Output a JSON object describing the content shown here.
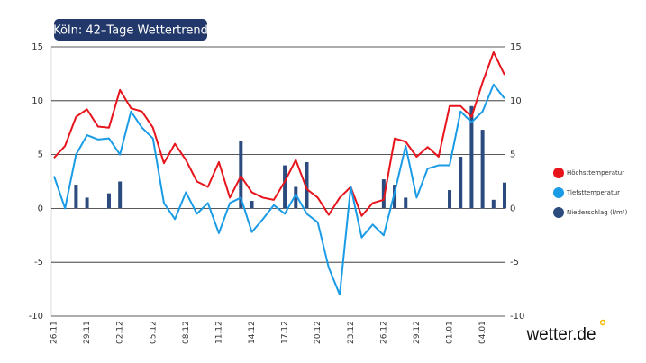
{
  "chart_data": {
    "type": "line",
    "title": "Köln: 42–Tage Wettertrend",
    "brand": "wetter.de",
    "categories": [
      "26.11",
      null,
      null,
      "29.11",
      null,
      null,
      "02.12",
      null,
      null,
      "05.12",
      null,
      null,
      "08.12",
      null,
      null,
      "11.12",
      null,
      null,
      "14.12",
      null,
      null,
      "17.12",
      null,
      null,
      "20.12",
      null,
      null,
      "23.12",
      null,
      null,
      "26.12",
      null,
      null,
      "29.12",
      null,
      null,
      "01.01",
      null,
      null,
      "04.01",
      null,
      null
    ],
    "series": [
      {
        "name": "Höchsttemperatur",
        "color": "#e8141c",
        "type": "line",
        "values": [
          4.7,
          5.8,
          8.5,
          9.2,
          7.6,
          7.5,
          11.0,
          9.3,
          9.0,
          7.5,
          4.2,
          6.0,
          4.5,
          2.5,
          2.0,
          4.3,
          1.0,
          3.0,
          1.5,
          1.0,
          0.8,
          2.5,
          4.5,
          1.8,
          1.0,
          -0.6,
          1.0,
          2.0,
          -0.7,
          0.5,
          0.8,
          6.5,
          6.2,
          4.8,
          5.7,
          4.8,
          9.5,
          9.5,
          8.5,
          11.7,
          14.5,
          12.4
        ]
      },
      {
        "name": "Tiefsttemperatur",
        "color": "#1a9be6",
        "type": "line",
        "values": [
          3.0,
          0.0,
          5.0,
          6.8,
          6.4,
          6.5,
          5.0,
          9.0,
          7.5,
          6.5,
          0.5,
          -1.0,
          1.5,
          -0.5,
          0.5,
          -2.3,
          0.5,
          1.0,
          -2.2,
          -1.0,
          0.3,
          -0.5,
          1.3,
          -0.5,
          -1.3,
          -5.5,
          -8.0,
          2.0,
          -2.7,
          -1.5,
          -2.5,
          1.5,
          5.8,
          1.0,
          3.7,
          4.0,
          4.0,
          9.0,
          8.0,
          9.0,
          11.5,
          10.2
        ]
      },
      {
        "name": "Niederschlag (l/m²)",
        "color": "#2b4a7e",
        "type": "bar",
        "axis": "y2",
        "values": [
          0,
          0,
          2.2,
          1.0,
          0,
          1.4,
          2.5,
          0,
          0,
          0,
          0,
          0,
          0,
          0,
          0,
          0,
          0,
          6.3,
          0.7,
          0,
          0,
          4.0,
          2.0,
          4.3,
          0,
          0,
          0,
          0,
          0,
          0,
          2.7,
          2.2,
          1.0,
          0,
          0,
          0,
          1.7,
          4.8,
          9.5,
          7.3,
          0.8,
          2.4
        ]
      }
    ],
    "ylim": [
      -10,
      15
    ],
    "yticks": [
      -10,
      -5,
      0,
      5,
      10,
      15
    ],
    "y2lim": [
      -10,
      15
    ],
    "y2ticks": [
      -10,
      -5,
      0,
      5,
      10,
      15
    ],
    "grid": true,
    "legend": "right"
  }
}
